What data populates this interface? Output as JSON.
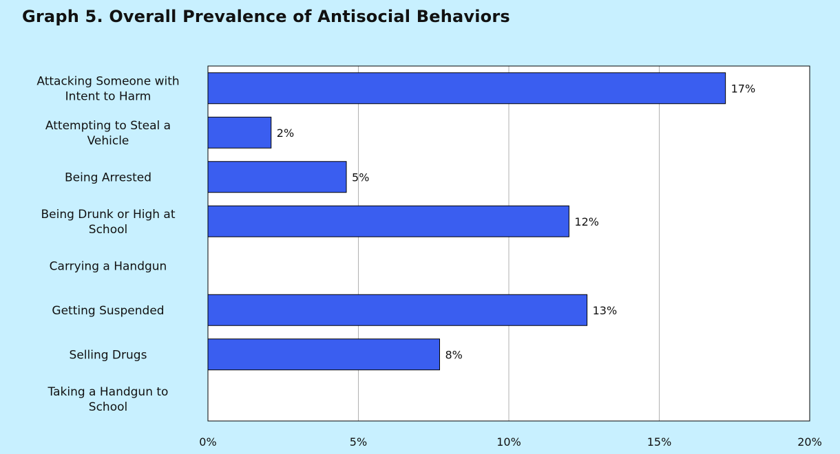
{
  "title": "Graph 5. Overall Prevalence of Antisocial Behaviors",
  "colors": {
    "background": "#c8f0ff",
    "bar_fill": "#3a5ef0",
    "bar_stroke": "#000000",
    "gridline": "#b0b0b0"
  },
  "chart_data": {
    "type": "bar",
    "orientation": "horizontal",
    "title": "Graph 5. Overall Prevalence of Antisocial Behaviors",
    "categories": [
      [
        "Attacking Someone with",
        "Intent to Harm"
      ],
      [
        "Attempting to Steal a",
        "Vehicle"
      ],
      [
        "Being Arrested"
      ],
      [
        "Being Drunk or High at",
        "School"
      ],
      [
        "Carrying a Handgun"
      ],
      [
        "Getting Suspended"
      ],
      [
        "Selling Drugs"
      ],
      [
        "Taking a Handgun to",
        "School"
      ]
    ],
    "values": [
      17.2,
      2.1,
      4.6,
      12.0,
      null,
      12.6,
      7.7,
      null
    ],
    "data_labels": [
      "17%",
      "2%",
      "5%",
      "12%",
      "",
      "13%",
      "8%",
      ""
    ],
    "xlim": [
      0,
      20
    ],
    "x_ticks": [
      0,
      5,
      10,
      15,
      20
    ],
    "x_tick_labels": [
      "0%",
      "5%",
      "10%",
      "15%",
      "20%"
    ],
    "xlabel": "",
    "ylabel": "",
    "grid": "vertical",
    "legend": "none"
  }
}
